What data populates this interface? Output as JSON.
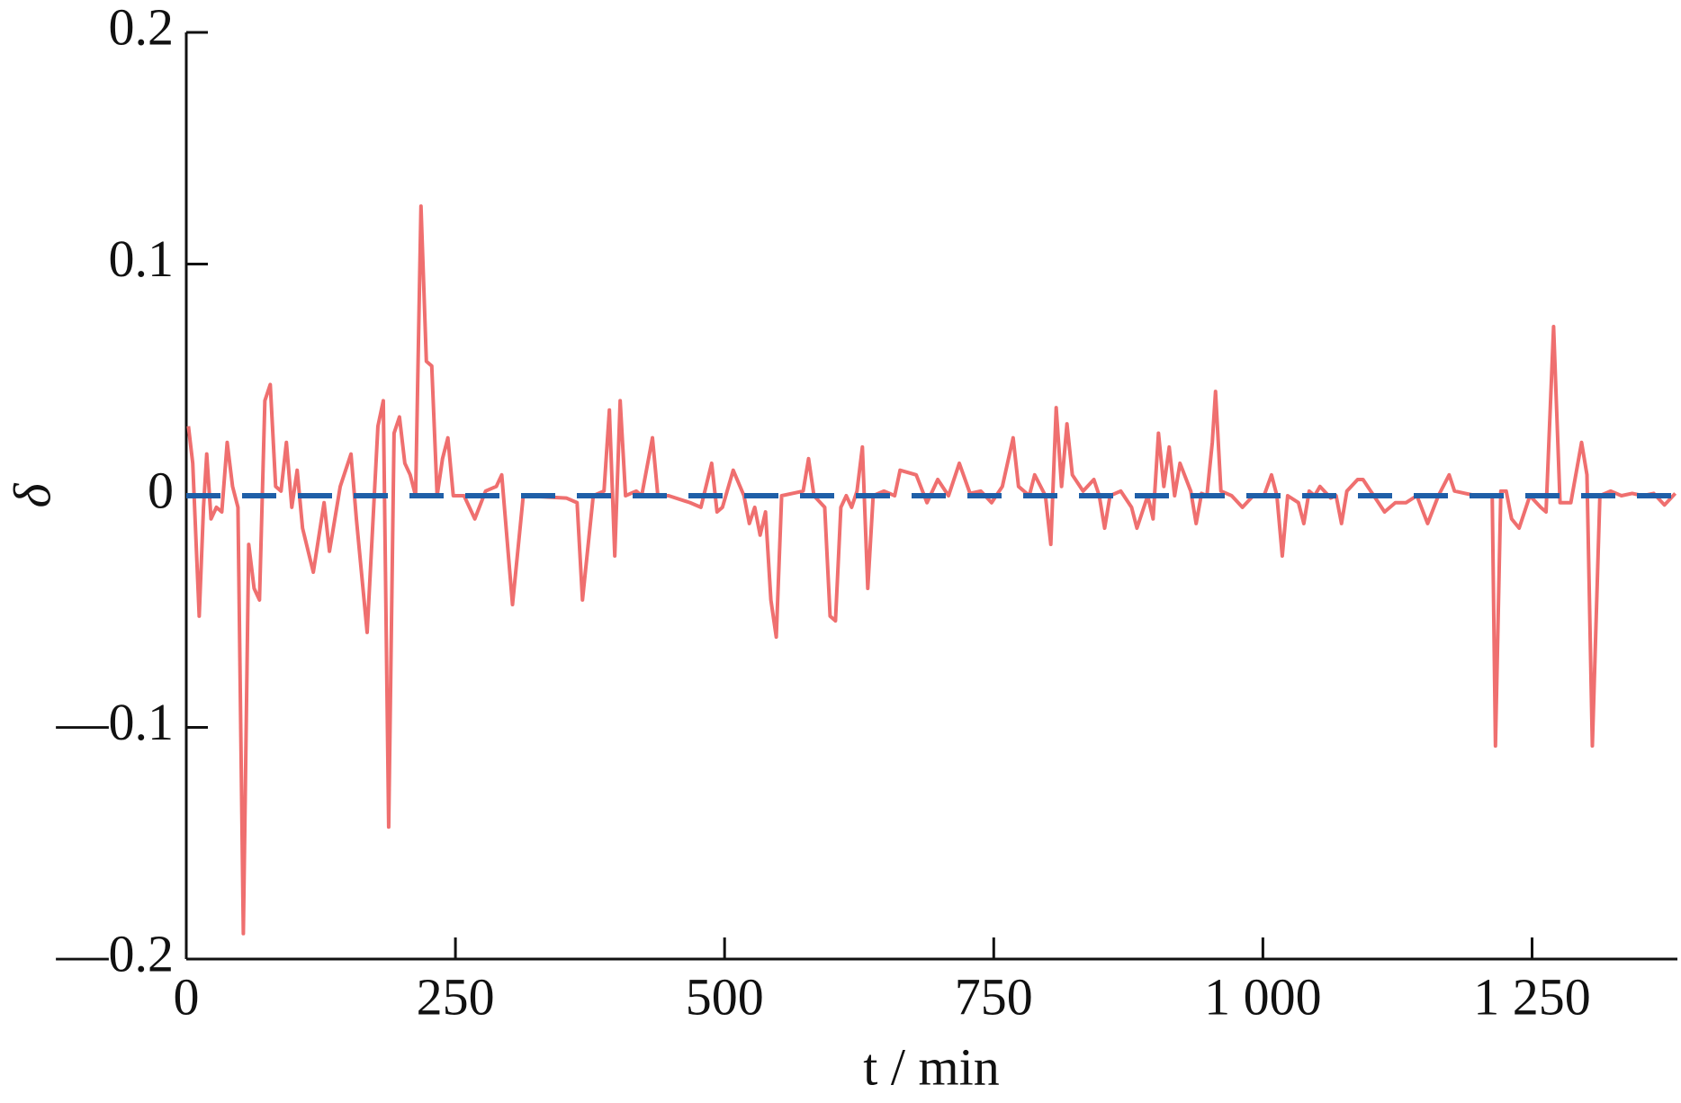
{
  "chart_data": {
    "type": "line",
    "xlabel": "t / min",
    "ylabel": "δ",
    "xlim": [
      0,
      1385
    ],
    "ylim": [
      -0.2,
      0.2
    ],
    "xticks": [
      0,
      250,
      500,
      750,
      {
        "value": 1000,
        "label": "1 000"
      },
      {
        "value": 1250,
        "label": "1 250"
      }
    ],
    "yticks": [
      {
        "value": -0.2,
        "label": "—0.2"
      },
      {
        "value": -0.1,
        "label": "—0.1"
      },
      0,
      0.1,
      0.2
    ],
    "series": [
      {
        "color": "#ef6f6f",
        "dashed": false,
        "x": [
          2,
          6,
          12,
          16,
          19,
          23,
          28,
          33,
          38,
          43,
          48,
          53,
          58,
          63,
          68,
          73,
          78,
          83,
          88,
          93,
          98,
          103,
          108,
          118,
          128,
          133,
          143,
          153,
          158,
          168,
          178,
          183,
          188,
          193,
          198,
          203,
          208,
          213,
          218,
          223,
          228,
          233,
          238,
          243,
          248,
          258,
          268,
          278,
          288,
          293,
          303,
          313,
          353,
          363,
          368,
          378,
          388,
          393,
          398,
          403,
          408,
          418,
          423,
          433,
          438,
          448,
          468,
          478,
          488,
          493,
          498,
          508,
          518,
          523,
          528,
          533,
          538,
          543,
          548,
          553,
          563,
          573,
          578,
          583,
          593,
          598,
          603,
          608,
          613,
          618,
          623,
          628,
          633,
          638,
          648,
          658,
          663,
          678,
          688,
          698,
          708,
          718,
          728,
          738,
          748,
          758,
          768,
          773,
          783,
          788,
          798,
          803,
          808,
          813,
          818,
          823,
          833,
          843,
          848,
          853,
          858,
          868,
          878,
          883,
          893,
          898,
          903,
          908,
          913,
          918,
          923,
          933,
          938,
          943,
          948,
          953,
          956,
          961,
          971,
          981,
          991,
          1001,
          1008,
          1013,
          1018,
          1023,
          1033,
          1038,
          1043,
          1048,
          1053,
          1063,
          1068,
          1073,
          1078,
          1088,
          1093,
          1103,
          1113,
          1123,
          1133,
          1143,
          1153,
          1163,
          1173,
          1178,
          1188,
          1198,
          1208,
          1213,
          1216,
          1221,
          1226,
          1231,
          1238,
          1243,
          1248,
          1258,
          1263,
          1270,
          1276,
          1286,
          1296,
          1301,
          1306,
          1313,
          1323,
          1333,
          1343,
          1353,
          1363,
          1373,
          1383
        ],
        "values": [
          0.03,
          0.014,
          -0.052,
          -0.005,
          0.018,
          -0.01,
          -0.005,
          -0.007,
          0.023,
          0.004,
          -0.005,
          -0.189,
          -0.021,
          -0.04,
          -0.045,
          0.041,
          0.048,
          0.004,
          0.002,
          0.023,
          -0.005,
          0.011,
          -0.014,
          -0.033,
          -0.003,
          -0.024,
          0.004,
          0.018,
          -0.01,
          -0.059,
          0.03,
          0.041,
          -0.143,
          0.027,
          0.034,
          0.014,
          0.009,
          0,
          0.125,
          0.058,
          0.056,
          0,
          0.016,
          0.025,
          0,
          0,
          -0.01,
          0.002,
          0.004,
          0.009,
          -0.047,
          0,
          -0.001,
          -0.003,
          -0.045,
          0,
          0.002,
          0.037,
          -0.026,
          0.041,
          0,
          0.002,
          0,
          0.025,
          0,
          0,
          -0.003,
          -0.005,
          0.014,
          -0.007,
          -0.005,
          0.011,
          0,
          -0.012,
          -0.005,
          -0.017,
          -0.007,
          -0.045,
          -0.061,
          0,
          0.001,
          0.002,
          0.016,
          0,
          -0.005,
          -0.052,
          -0.054,
          -0.005,
          0,
          -0.005,
          0.002,
          0.021,
          -0.04,
          0,
          0.002,
          0,
          0.011,
          0.009,
          -0.003,
          0.007,
          0,
          0.014,
          0.001,
          0.002,
          -0.003,
          0.004,
          0.025,
          0.004,
          0,
          0.009,
          0,
          -0.021,
          0.038,
          0.004,
          0.031,
          0.009,
          0.002,
          0.007,
          0,
          -0.014,
          0,
          0.002,
          -0.005,
          -0.014,
          0,
          -0.01,
          0.027,
          0.004,
          0.021,
          0,
          0.014,
          0.002,
          -0.012,
          0.001,
          0,
          0.023,
          0.045,
          0.002,
          0,
          -0.005,
          0,
          0,
          0.009,
          0,
          -0.026,
          0,
          -0.003,
          -0.012,
          0.002,
          0,
          0.004,
          -0.001,
          0,
          -0.012,
          0.002,
          0.007,
          0.007,
          0,
          -0.007,
          -0.003,
          -0.003,
          0,
          -0.012,
          0,
          0.009,
          0.002,
          0.001,
          0,
          0,
          0,
          -0.108,
          0.002,
          0.002,
          -0.01,
          -0.014,
          -0.007,
          0,
          -0.005,
          -0.007,
          0.073,
          -0.003,
          -0.003,
          0.023,
          0.009,
          -0.108,
          0,
          0.002,
          0,
          0.001,
          0,
          0.001,
          -0.004,
          0.001
        ]
      },
      {
        "color": "#1f5fa8",
        "dashed": true,
        "x": [
          0,
          1385
        ],
        "values": [
          0,
          0
        ]
      }
    ]
  }
}
